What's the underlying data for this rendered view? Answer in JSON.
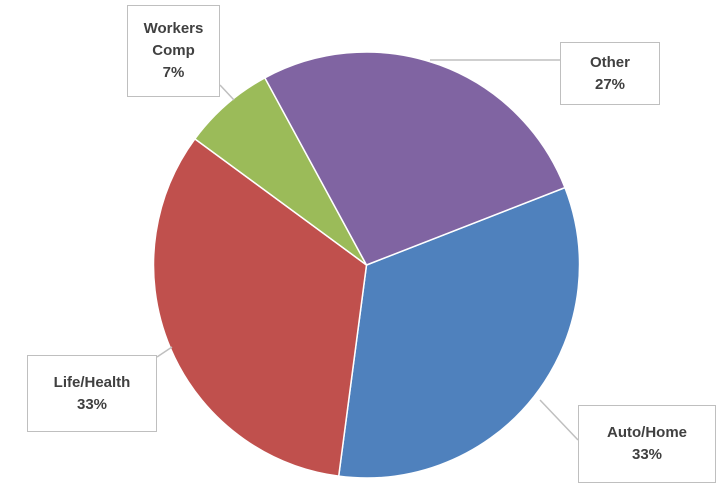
{
  "chart_data": {
    "type": "pie",
    "categories": [
      "Auto/Home",
      "Life/Health",
      "Workers Comp",
      "Other"
    ],
    "values": [
      33,
      33,
      7,
      27
    ],
    "value_labels": [
      "33%",
      "33%",
      "7%",
      "27%"
    ],
    "colors": [
      "#4f81bd",
      "#c0504d",
      "#9bbb59",
      "#8064a2"
    ]
  }
}
